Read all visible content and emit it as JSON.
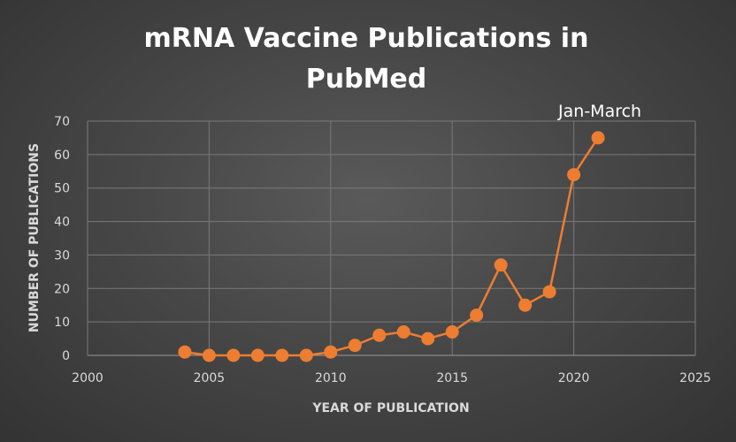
{
  "chart_data": {
    "type": "line",
    "title": "mRNA Vaccine Publications in PubMed",
    "xlabel": "YEAR OF PUBLICATION",
    "ylabel": "NUMBER OF PUBLICATIONS",
    "xlim": [
      2000,
      2025
    ],
    "ylim": [
      0,
      70
    ],
    "xticks": [
      2000,
      2005,
      2010,
      2015,
      2020,
      2025
    ],
    "yticks": [
      0,
      10,
      20,
      30,
      40,
      50,
      60,
      70
    ],
    "grid": true,
    "legend": "none",
    "series": [
      {
        "x": [
          2004,
          2005,
          2006,
          2007,
          2008,
          2009,
          2010,
          2011,
          2012,
          2013,
          2014,
          2015,
          2016,
          2017,
          2018,
          2019,
          2020,
          2021
        ],
        "y": [
          1,
          0,
          0,
          0,
          0,
          0,
          1,
          3,
          6,
          7,
          5,
          7,
          12,
          27,
          15,
          19,
          54,
          65
        ],
        "color": "#ed7d31"
      }
    ],
    "annotations": [
      {
        "text": "Jan-March",
        "x": 2021,
        "y": 65
      }
    ],
    "colors": {
      "line": "#ed7d31",
      "grid": "#7a7a7a",
      "text": "#d9d9d9",
      "title": "#ffffff"
    }
  }
}
